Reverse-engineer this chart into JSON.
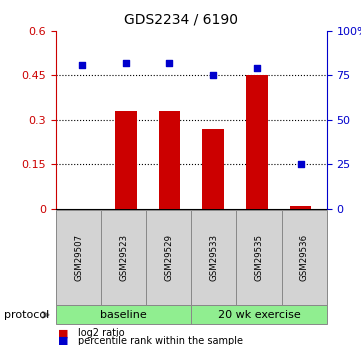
{
  "title": "GDS2234 / 6190",
  "samples": [
    "GSM29507",
    "GSM29523",
    "GSM29529",
    "GSM29533",
    "GSM29535",
    "GSM29536"
  ],
  "log2_ratio": [
    0.0,
    0.33,
    0.33,
    0.27,
    0.45,
    0.01
  ],
  "percentile_rank": [
    81,
    82,
    82,
    75,
    79,
    25
  ],
  "bar_color": "#cc0000",
  "dot_color": "#0000cc",
  "left_ylim": [
    0,
    0.6
  ],
  "right_ylim": [
    0,
    100
  ],
  "left_yticks": [
    0,
    0.15,
    0.3,
    0.45,
    0.6
  ],
  "left_ytick_labels": [
    "0",
    "0.15",
    "0.3",
    "0.45",
    "0.6"
  ],
  "right_yticks": [
    0,
    25,
    50,
    75,
    100
  ],
  "right_ytick_labels": [
    "0",
    "25",
    "50",
    "75",
    "100%"
  ],
  "hlines": [
    0.15,
    0.3,
    0.45
  ],
  "baseline_label": "baseline",
  "exercise_label": "20 wk exercise",
  "protocol_label": "protocol",
  "legend_bar_label": "log2 ratio",
  "legend_dot_label": "percentile rank within the sample",
  "bg_color": "#ffffff",
  "tick_label_color_left": "#cc0000",
  "tick_label_color_right": "#0000cc",
  "bar_width": 0.5,
  "sample_box_color": "#d3d3d3",
  "protocol_box_color": "#90ee90",
  "x_positions": [
    0,
    1,
    2,
    3,
    4,
    5
  ]
}
